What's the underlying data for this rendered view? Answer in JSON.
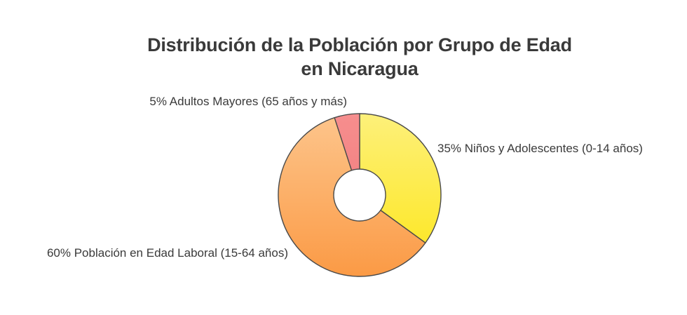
{
  "chart_data": {
    "type": "pie",
    "variant": "donut",
    "title": "Distribución de la Población por Grupo de Edad en Nicaragua",
    "title_lines": [
      "Distribución de la Población por Grupo de Edad",
      "en Nicaragua"
    ],
    "slices": [
      {
        "name": "Niños y Adolescentes (0-14 años)",
        "value": 35,
        "label": "35% Niños y Adolescentes (0-14 años)",
        "color_top": "#fdf07a",
        "color_bottom": "#fde82c"
      },
      {
        "name": "Población en Edad Laboral (15-64 años)",
        "value": 60,
        "label": "60% Población en Edad Laboral (15-64 años)",
        "color_top": "#fdc48a",
        "color_bottom": "#fb9a45"
      },
      {
        "name": "Adultos Mayores (65 años y más)",
        "value": 5,
        "label": "5% Adultos Mayores (65 años y más)",
        "color_top": "#f68e8e",
        "color_bottom": "#f48585"
      }
    ],
    "unit": "%",
    "legend": "none"
  }
}
